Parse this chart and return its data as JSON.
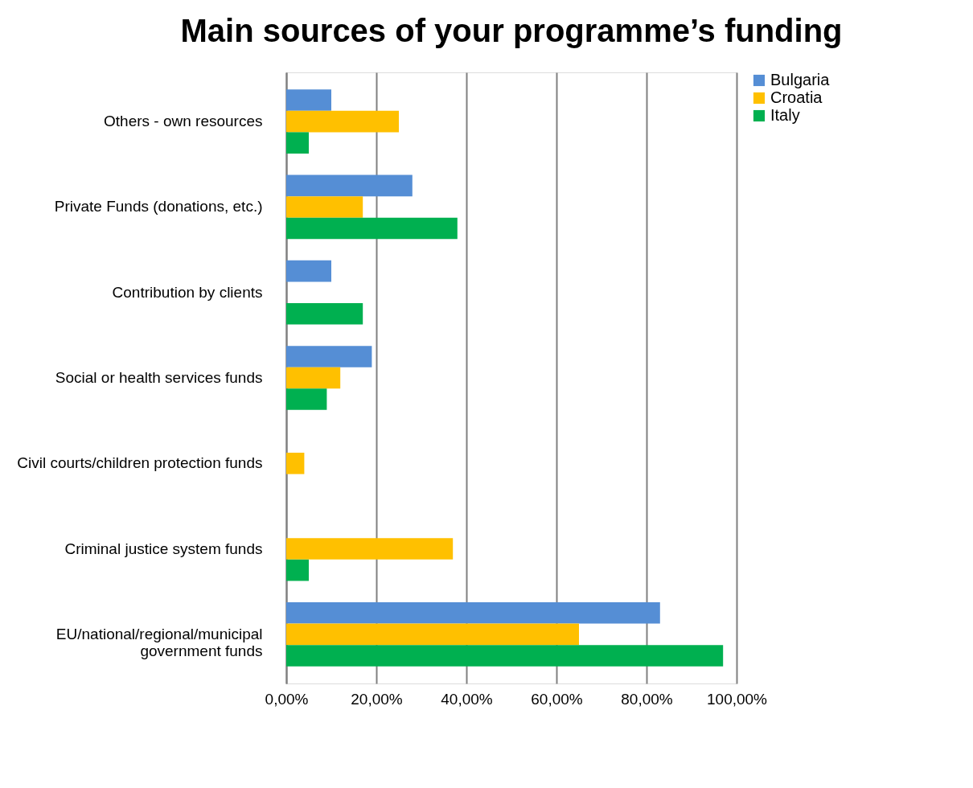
{
  "chart_data": {
    "type": "bar",
    "orientation": "horizontal",
    "title": "Main sources of your programme’s funding",
    "categories": [
      "Others - own resources",
      "Private Funds (donations, etc.)",
      "Contribution by clients",
      "Social or health services funds",
      "Civil courts/children protection funds",
      "Criminal justice system funds",
      "EU/national/regional/municipal government funds"
    ],
    "series": [
      {
        "name": "Bulgaria",
        "color": "#558ed5",
        "values": [
          10,
          28,
          10,
          19,
          null,
          null,
          83
        ]
      },
      {
        "name": "Croatia",
        "color": "#ffc000",
        "values": [
          25,
          17,
          null,
          12,
          4,
          37,
          65
        ]
      },
      {
        "name": "Italy",
        "color": "#00b050",
        "values": [
          5,
          38,
          17,
          9,
          null,
          5,
          97
        ]
      }
    ],
    "xlim": [
      0,
      100
    ],
    "xticks": [
      {
        "value": 0,
        "label": "0,00%"
      },
      {
        "value": 20,
        "label": "20,00%"
      },
      {
        "value": 40,
        "label": "40,00%"
      },
      {
        "value": 60,
        "label": "60,00%"
      },
      {
        "value": 80,
        "label": "80,00%"
      },
      {
        "value": 100,
        "label": "100,00%"
      }
    ],
    "grid": "x",
    "legend": "right"
  }
}
